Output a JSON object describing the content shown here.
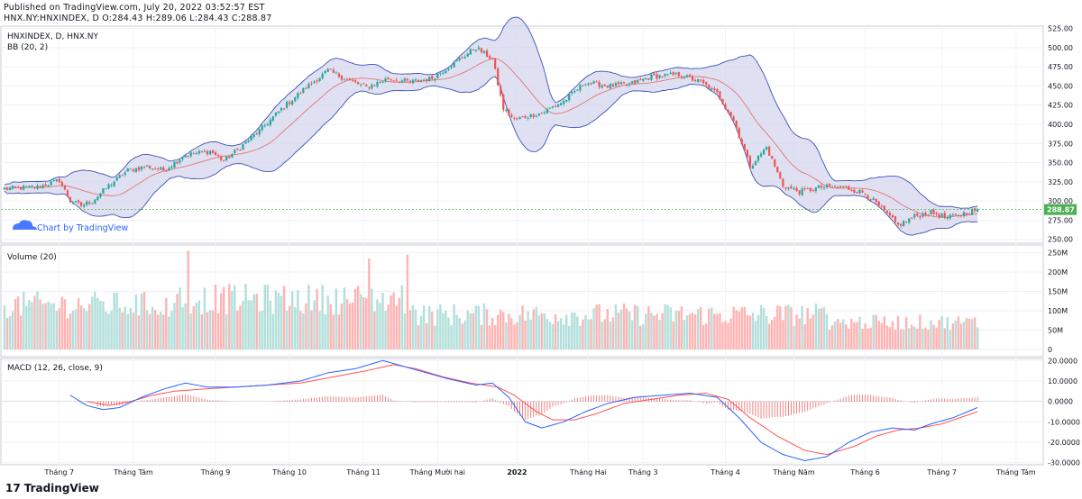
{
  "header": {
    "published": "Published on TradingView.com, July 20, 2022 03:52:57 EST",
    "ohlc": "HNX.NY:HNXINDEX, D O:284.43 H:289.06 L:284.43 C:288.87"
  },
  "footer": {
    "brand": "TradingView",
    "logo_glyph": "17"
  },
  "colors": {
    "up": "#26a69a",
    "down": "#ef5350",
    "vol_up": "#b2dfdb",
    "vol_down": "#ffb3b3",
    "bb_band": "#3f51b5",
    "bb_fill": "#d1d4ec",
    "bb_mid": "#e57373",
    "macd": "#2962ff",
    "signal": "#ff5252",
    "price_label": "#4caf50"
  },
  "chart_data": {
    "type": "candlestick",
    "symbol": "HNXINDEX",
    "panes": [
      {
        "name": "price",
        "legend": [
          "HNXINDEX, D, HNX.NY",
          "BB (20, 2)"
        ],
        "watermark": "Chart by TradingView",
        "y_ticks": [
          "525.00",
          "500.00",
          "475.00",
          "450.00",
          "425.00",
          "400.00",
          "375.00",
          "350.00",
          "325.00",
          "300.00",
          "275.00",
          "250.00"
        ],
        "ylim": [
          245,
          528
        ],
        "last_price": "288.87",
        "keyframes": [
          [
            0,
            316
          ],
          [
            12,
            318
          ],
          [
            20,
            327
          ],
          [
            24,
            300
          ],
          [
            28,
            294
          ],
          [
            32,
            300
          ],
          [
            38,
            320
          ],
          [
            45,
            340
          ],
          [
            52,
            345
          ],
          [
            58,
            340
          ],
          [
            66,
            360
          ],
          [
            75,
            365
          ],
          [
            80,
            352
          ],
          [
            86,
            370
          ],
          [
            94,
            395
          ],
          [
            101,
            420
          ],
          [
            110,
            448
          ],
          [
            118,
            470
          ],
          [
            124,
            460
          ],
          [
            132,
            448
          ],
          [
            140,
            460
          ],
          [
            148,
            455
          ],
          [
            156,
            460
          ],
          [
            164,
            480
          ],
          [
            172,
            500
          ],
          [
            178,
            485
          ],
          [
            182,
            420
          ],
          [
            186,
            406
          ],
          [
            190,
            410
          ],
          [
            196,
            415
          ],
          [
            204,
            430
          ],
          [
            212,
            455
          ],
          [
            220,
            450
          ],
          [
            228,
            452
          ],
          [
            236,
            462
          ],
          [
            246,
            465
          ],
          [
            254,
            455
          ],
          [
            260,
            440
          ],
          [
            266,
            405
          ],
          [
            272,
            345
          ],
          [
            278,
            370
          ],
          [
            284,
            320
          ],
          [
            290,
            312
          ],
          [
            298,
            318
          ],
          [
            306,
            318
          ],
          [
            314,
            310
          ],
          [
            320,
            290
          ],
          [
            326,
            268
          ],
          [
            332,
            280
          ],
          [
            338,
            285
          ],
          [
            344,
            278
          ],
          [
            350,
            284
          ],
          [
            355,
            289
          ]
        ]
      },
      {
        "name": "volume",
        "legend": [
          "Volume (20)"
        ],
        "y_ticks": [
          "250M",
          "200M",
          "150M",
          "100M",
          "50M",
          "0"
        ],
        "ylim": [
          0,
          265
        ]
      },
      {
        "name": "macd",
        "legend": [
          "MACD (12, 26, close, 9)"
        ],
        "y_ticks": [
          "20.0000",
          "10.0000",
          "0.0000",
          "-10.0000",
          "-20.0000",
          "-30.0000"
        ],
        "ylim": [
          -31,
          21
        ],
        "macd_points": [
          [
            24,
            3
          ],
          [
            30,
            -2
          ],
          [
            36,
            -4
          ],
          [
            42,
            -3
          ],
          [
            50,
            2
          ],
          [
            58,
            6
          ],
          [
            66,
            9
          ],
          [
            74,
            7
          ],
          [
            84,
            7
          ],
          [
            96,
            8
          ],
          [
            108,
            10
          ],
          [
            118,
            14
          ],
          [
            128,
            16
          ],
          [
            138,
            20
          ],
          [
            146,
            17
          ],
          [
            154,
            14
          ],
          [
            162,
            11
          ],
          [
            172,
            8
          ],
          [
            178,
            9
          ],
          [
            184,
            2
          ],
          [
            190,
            -10
          ],
          [
            196,
            -13
          ],
          [
            204,
            -10
          ],
          [
            212,
            -5
          ],
          [
            220,
            -1
          ],
          [
            230,
            2
          ],
          [
            240,
            3
          ],
          [
            250,
            4
          ],
          [
            260,
            2
          ],
          [
            268,
            -8
          ],
          [
            276,
            -20
          ],
          [
            284,
            -26
          ],
          [
            292,
            -29
          ],
          [
            300,
            -27
          ],
          [
            308,
            -20
          ],
          [
            316,
            -15
          ],
          [
            324,
            -13
          ],
          [
            332,
            -14
          ],
          [
            338,
            -11
          ],
          [
            346,
            -8
          ],
          [
            355,
            -3
          ]
        ],
        "signal_points": [
          [
            30,
            0
          ],
          [
            38,
            -2
          ],
          [
            46,
            0
          ],
          [
            54,
            3
          ],
          [
            62,
            5
          ],
          [
            72,
            6
          ],
          [
            84,
            7
          ],
          [
            96,
            8
          ],
          [
            108,
            9
          ],
          [
            120,
            12
          ],
          [
            132,
            15
          ],
          [
            142,
            18
          ],
          [
            150,
            16
          ],
          [
            160,
            12
          ],
          [
            170,
            9
          ],
          [
            180,
            7
          ],
          [
            186,
            3
          ],
          [
            194,
            -5
          ],
          [
            200,
            -9
          ],
          [
            208,
            -9
          ],
          [
            216,
            -6
          ],
          [
            226,
            -1
          ],
          [
            236,
            1
          ],
          [
            246,
            3
          ],
          [
            256,
            4
          ],
          [
            264,
            1
          ],
          [
            272,
            -8
          ],
          [
            282,
            -17
          ],
          [
            292,
            -24
          ],
          [
            300,
            -26
          ],
          [
            310,
            -22
          ],
          [
            318,
            -17
          ],
          [
            326,
            -14
          ],
          [
            334,
            -13
          ],
          [
            342,
            -11
          ],
          [
            355,
            -5
          ]
        ]
      }
    ],
    "x_tick_labels": [
      "Tháng 7",
      "Tháng Tám",
      "Tháng 9",
      "Tháng 10",
      "Tháng 11",
      "Tháng Mười hai",
      "2022",
      "Tháng Hai",
      "Tháng 3",
      "Tháng 4",
      "Tháng Năm",
      "Tháng 6",
      "Tháng 7",
      "Tháng Tám"
    ],
    "x_tick_bar_index": [
      20,
      47,
      77,
      104,
      131,
      158,
      187,
      213,
      233,
      263,
      288,
      314,
      342,
      369
    ],
    "num_bars": 356
  }
}
